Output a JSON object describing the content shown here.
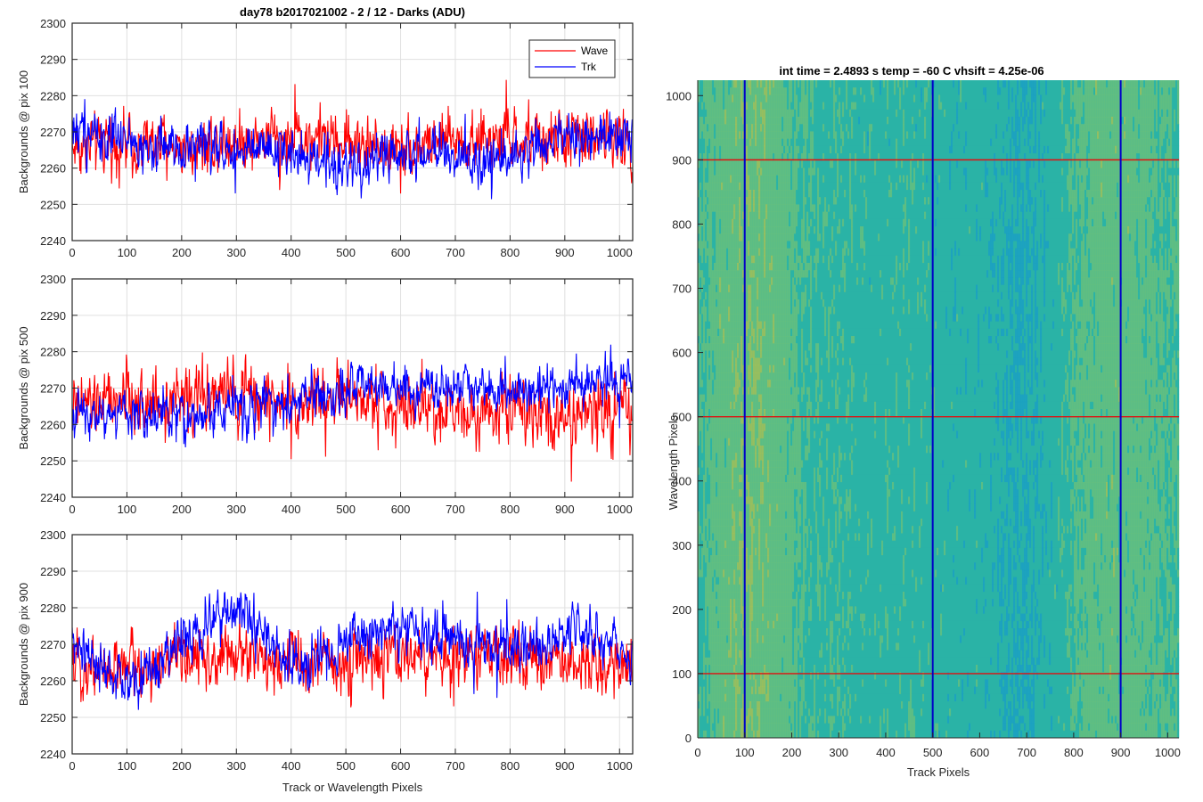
{
  "chart_data": [
    {
      "type": "line",
      "title": "day78 b2017021002 - 2 / 12 - Darks (ADU)",
      "xlabel": "",
      "ylabel": "Backgrounds @ pix 100",
      "xlim": [
        0,
        1024
      ],
      "ylim": [
        2240,
        2300
      ],
      "xticks": [
        0,
        100,
        200,
        300,
        400,
        500,
        600,
        700,
        800,
        900,
        1000
      ],
      "yticks": [
        2240,
        2250,
        2260,
        2270,
        2280,
        2290,
        2300
      ],
      "grid": true,
      "legend_position": "top-right",
      "x_points": 1024,
      "series": [
        {
          "name": "Wave",
          "color": "#ff0000",
          "mean": 2266,
          "spread": 6.5,
          "anchors": [
            2266,
            2267,
            2266,
            2268,
            2269,
            2267,
            2266,
            2268,
            2267,
            2269,
            2268
          ]
        },
        {
          "name": "Trk",
          "color": "#0000ff",
          "mean": 2266,
          "spread": 5.5,
          "anchors": [
            2272,
            2266,
            2267,
            2265,
            2263,
            2260,
            2265,
            2262,
            2264,
            2268,
            2270
          ]
        }
      ]
    },
    {
      "type": "line",
      "title": "",
      "xlabel": "",
      "ylabel": "Backgrounds @ pix 500",
      "xlim": [
        0,
        1024
      ],
      "ylim": [
        2240,
        2300
      ],
      "xticks": [
        0,
        100,
        200,
        300,
        400,
        500,
        600,
        700,
        800,
        900,
        1000
      ],
      "yticks": [
        2240,
        2250,
        2260,
        2270,
        2280,
        2290,
        2300
      ],
      "grid": true,
      "x_points": 1024,
      "series": [
        {
          "name": "Wave",
          "color": "#ff0000",
          "mean": 2266,
          "spread": 7,
          "anchors": [
            2265,
            2266,
            2267,
            2268,
            2266,
            2267,
            2265,
            2264,
            2265,
            2263,
            2262
          ]
        },
        {
          "name": "Trk",
          "color": "#0000ff",
          "mean": 2266,
          "spread": 5,
          "anchors": [
            2263,
            2263,
            2262,
            2265,
            2266,
            2270,
            2269,
            2271,
            2269,
            2271,
            2273
          ]
        }
      ]
    },
    {
      "type": "line",
      "title": "",
      "xlabel": "Track or Wavelength Pixels",
      "ylabel": "Backgrounds @ pix 900",
      "xlim": [
        0,
        1024
      ],
      "ylim": [
        2240,
        2300
      ],
      "xticks": [
        0,
        100,
        200,
        300,
        400,
        500,
        600,
        700,
        800,
        900,
        1000
      ],
      "yticks": [
        2240,
        2250,
        2260,
        2270,
        2280,
        2290,
        2300
      ],
      "grid": true,
      "x_points": 1024,
      "series": [
        {
          "name": "Wave",
          "color": "#ff0000",
          "mean": 2266,
          "spread": 6.5,
          "anchors": [
            2264,
            2264,
            2266,
            2267,
            2265,
            2266,
            2266,
            2267,
            2266,
            2265,
            2263
          ]
        },
        {
          "name": "Trk",
          "color": "#0000ff",
          "mean": 2268,
          "spread": 5.5,
          "anchors": [
            2270,
            2258,
            2272,
            2280,
            2262,
            2272,
            2275,
            2270,
            2268,
            2276,
            2266
          ]
        }
      ]
    },
    {
      "type": "heatmap",
      "title": "int time = 2.4893 s    temp = -60 C    vhsift = 4.25e-06",
      "xlabel": "Track Pixels",
      "ylabel": "Wavelength Pixels",
      "xlim": [
        0,
        1024
      ],
      "ylim": [
        0,
        1024
      ],
      "xticks": [
        0,
        100,
        200,
        300,
        400,
        500,
        600,
        700,
        800,
        900,
        1000
      ],
      "yticks": [
        0,
        100,
        200,
        300,
        400,
        500,
        600,
        700,
        800,
        900,
        1000
      ],
      "grid": false,
      "colormap": [
        "#1a9ec6",
        "#2bb3a6",
        "#6cc07a",
        "#b2c14e"
      ],
      "vertical_markers": {
        "color": "#0000c8",
        "x": [
          100,
          500,
          900
        ]
      },
      "horizontal_markers": {
        "color": "#e01010",
        "y": [
          100,
          500,
          900
        ]
      }
    }
  ]
}
